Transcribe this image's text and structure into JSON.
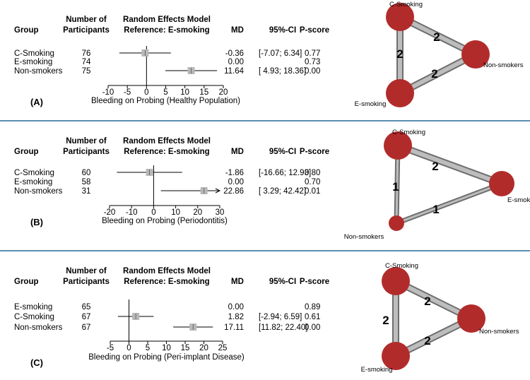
{
  "colors": {
    "separator": "#5b8fb3",
    "node": "#b22b2b",
    "square": "#b8b8b8",
    "edge": "#bdbdbd"
  },
  "header": {
    "group": "Group",
    "number_line1": "Number of",
    "number_line2": "Participants",
    "model_line1": "Random Effects Model",
    "model_line2": "Reference: E-smoking",
    "md": "MD",
    "ci": "95%-CI",
    "pscore": "P-score"
  },
  "chart_data": [
    {
      "type": "forest",
      "panel_label": "(A)",
      "xlabel": "Bleeding on Probing (Healthy Population)",
      "xticks": [
        "-10",
        "-5",
        "0",
        "5",
        "10",
        "15",
        "20"
      ],
      "xlim": [
        -10,
        20
      ],
      "rows": [
        {
          "group": "C-Smoking",
          "n": "76",
          "md": "-0.36",
          "ci": "[-7.07; 6.34]",
          "pscore": "0.77",
          "est": -0.36,
          "lo": -7.07,
          "hi": 6.34,
          "arrow": false
        },
        {
          "group": "E-smoking",
          "n": "74",
          "md": "0.00",
          "ci": "",
          "pscore": "0.73",
          "est": null,
          "lo": null,
          "hi": null,
          "arrow": false
        },
        {
          "group": "Non-smokers",
          "n": "75",
          "md": "11.64",
          "ci": "[ 4.93; 18.36]",
          "pscore": "0.00",
          "est": 11.64,
          "lo": 4.93,
          "hi": 18.36,
          "arrow": false
        }
      ],
      "network": {
        "nodes": [
          {
            "name": "C-Smoking",
            "size": 1.0
          },
          {
            "name": "Non-smokers",
            "size": 1.0
          },
          {
            "name": "E-smoking",
            "size": 1.0
          }
        ],
        "edges": [
          {
            "from": "C-Smoking",
            "to": "Non-smokers",
            "label": "2",
            "width": 2
          },
          {
            "from": "C-Smoking",
            "to": "E-smoking",
            "label": "2",
            "width": 2
          },
          {
            "from": "E-smoking",
            "to": "Non-smokers",
            "label": "2",
            "width": 2
          }
        ]
      }
    },
    {
      "type": "forest",
      "panel_label": "(B)",
      "xlabel": "Bleeding on Probing (Periodontitis)",
      "xticks": [
        "-20",
        "-10",
        "0",
        "10",
        "20",
        "30"
      ],
      "xlim": [
        -20,
        30
      ],
      "rows": [
        {
          "group": "C-Smoking",
          "n": "60",
          "md": "-1.86",
          "ci": "[-16.66; 12.93]",
          "pscore": "0.80",
          "est": -1.86,
          "lo": -16.66,
          "hi": 12.93,
          "arrow": false
        },
        {
          "group": "E-smoking",
          "n": "58",
          "md": "0.00",
          "ci": "",
          "pscore": "0.70",
          "est": null,
          "lo": null,
          "hi": null,
          "arrow": false
        },
        {
          "group": "Non-smokers",
          "n": "31",
          "md": "22.86",
          "ci": "[ 3.29; 42.42]",
          "pscore": "0.01",
          "est": 22.86,
          "lo": 3.29,
          "hi": 42.42,
          "arrow": true
        }
      ],
      "network": {
        "nodes": [
          {
            "name": "C-Smoking",
            "size": 1.0
          },
          {
            "name": "E-smoking",
            "size": 0.9
          },
          {
            "name": "Non-smokers",
            "size": 0.55
          }
        ],
        "edges": [
          {
            "from": "C-Smoking",
            "to": "E-smoking",
            "label": "2",
            "width": 2
          },
          {
            "from": "C-Smoking",
            "to": "Non-smokers",
            "label": "1",
            "width": 1
          },
          {
            "from": "Non-smokers",
            "to": "E-smoking",
            "label": "1",
            "width": 1
          }
        ]
      }
    },
    {
      "type": "forest",
      "panel_label": "(C)",
      "xlabel": "Bleeding on Probing (Peri-implant Disease)",
      "xticks": [
        "-5",
        "0",
        "5",
        "10",
        "15",
        "20",
        "25"
      ],
      "xlim": [
        -5,
        25
      ],
      "rows": [
        {
          "group": "E-smoking",
          "n": "65",
          "md": "0.00",
          "ci": "",
          "pscore": "0.89",
          "est": null,
          "lo": null,
          "hi": null,
          "arrow": false
        },
        {
          "group": "C-Smoking",
          "n": "67",
          "md": "1.82",
          "ci": "[-2.94; 6.59]",
          "pscore": "0.61",
          "est": 1.82,
          "lo": -2.94,
          "hi": 6.59,
          "arrow": false
        },
        {
          "group": "Non-smokers",
          "n": "67",
          "md": "17.11",
          "ci": "[11.82; 22.40]",
          "pscore": "0.00",
          "est": 17.11,
          "lo": 11.82,
          "hi": 22.4,
          "arrow": false
        }
      ],
      "network": {
        "nodes": [
          {
            "name": "C-Smoking",
            "size": 1.0
          },
          {
            "name": "Non-smokers",
            "size": 1.0
          },
          {
            "name": "E-smoking",
            "size": 1.0
          }
        ],
        "edges": [
          {
            "from": "C-Smoking",
            "to": "Non-smokers",
            "label": "2",
            "width": 2
          },
          {
            "from": "C-Smoking",
            "to": "E-smoking",
            "label": "2",
            "width": 2
          },
          {
            "from": "E-smoking",
            "to": "Non-smokers",
            "label": "2",
            "width": 2
          }
        ]
      }
    }
  ]
}
